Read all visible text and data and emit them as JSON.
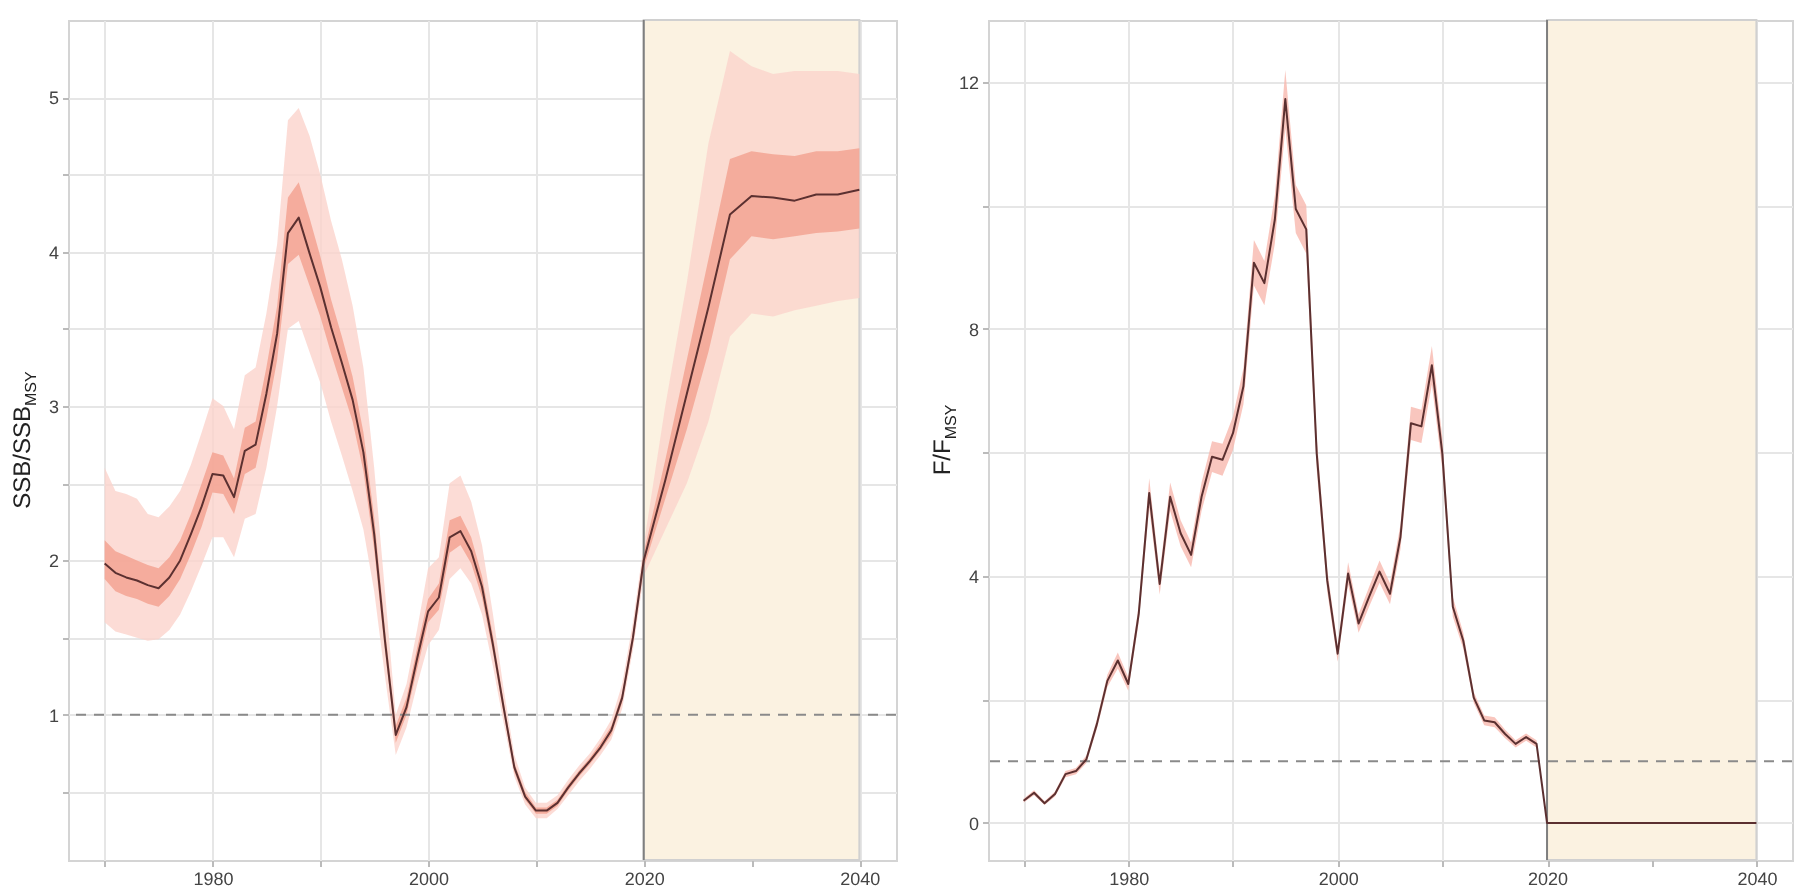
{
  "chart_data": [
    {
      "type": "line",
      "ylabel": "SSB/SSB$_{MSY}$",
      "grid": true,
      "xlim": [
        1966.6,
        2043.4
      ],
      "ylim": [
        0.06,
        5.5
      ],
      "xticks": [
        {
          "value": 1970,
          "label": null
        },
        1980,
        {
          "value": 1990,
          "label": null
        },
        2000,
        {
          "value": 2010,
          "label": null
        },
        2020,
        {
          "value": 2030,
          "label": null
        },
        2040
      ],
      "yticks": [
        {
          "value": 0.5,
          "label": null
        },
        1,
        {
          "value": 1.5,
          "label": null
        },
        2,
        {
          "value": 2.5,
          "label": null
        },
        3,
        {
          "value": 3.5,
          "label": null
        },
        4,
        {
          "value": 4.5,
          "label": null
        },
        5
      ],
      "x": [
        1970,
        1971,
        1972,
        1973,
        1974,
        1975,
        1976,
        1977,
        1978,
        1979,
        1980,
        1981,
        1982,
        1983,
        1984,
        1985,
        1986,
        1987,
        1988,
        1989,
        1990,
        1991,
        1992,
        1993,
        1994,
        1995,
        1996,
        1997,
        1998,
        1999,
        2000,
        2001,
        2002,
        2003,
        2004,
        2005,
        2006,
        2007,
        2008,
        2009,
        2010,
        2011,
        2012,
        2013,
        2014,
        2015,
        2016,
        2017,
        2018,
        2019,
        2020,
        2022,
        2024,
        2026,
        2028,
        2030,
        2032,
        2034,
        2036,
        2038,
        2040
      ],
      "bands": [
        {
          "axis": "x",
          "from": 2020,
          "to": 2040,
          "color": "#fbf2e1"
        }
      ],
      "ref_lines": [
        {
          "axis": "x",
          "value": 2020,
          "color": "#7f7f7f",
          "line_style": "solid"
        },
        {
          "axis": "y",
          "value": 1,
          "color": "#8a8a8a",
          "line_style": "dashed"
        }
      ],
      "series": [
        {
          "color": "#5b3030",
          "values": [
            1.98,
            1.92,
            1.89,
            1.87,
            1.84,
            1.82,
            1.89,
            2.0,
            2.17,
            2.35,
            2.56,
            2.55,
            2.41,
            2.71,
            2.75,
            3.08,
            3.47,
            4.12,
            4.22,
            3.99,
            3.77,
            3.51,
            3.28,
            3.04,
            2.7,
            2.17,
            1.48,
            0.87,
            1.05,
            1.37,
            1.67,
            1.76,
            2.15,
            2.19,
            2.06,
            1.83,
            1.46,
            1.05,
            0.66,
            0.47,
            0.38,
            0.38,
            0.43,
            0.53,
            0.62,
            0.7,
            0.79,
            0.9,
            1.11,
            1.5,
            2.0,
            2.52,
            3.08,
            3.64,
            4.24,
            4.36,
            4.35,
            4.33,
            4.37,
            4.37,
            4.4
          ]
        },
        {
          "color": "#f2a08f",
          "values": [
            null,
            null,
            null,
            null,
            null,
            null,
            null,
            null,
            null,
            null,
            null,
            null,
            null,
            null,
            null,
            null,
            null,
            null,
            null,
            null,
            null,
            null,
            null,
            null,
            null,
            null,
            null,
            null,
            null,
            null,
            null,
            null,
            null,
            null,
            null,
            null,
            null,
            null,
            null,
            null,
            null,
            null,
            null,
            null,
            null,
            null,
            null,
            null,
            null,
            null,
            null,
            null,
            null,
            null,
            null,
            null,
            null,
            null,
            null,
            null,
            null
          ],
          "lower": [
            1.88,
            1.8,
            1.77,
            1.75,
            1.72,
            1.7,
            1.77,
            1.88,
            2.04,
            2.22,
            2.44,
            2.43,
            2.3,
            2.56,
            2.6,
            2.92,
            3.3,
            3.92,
            3.98,
            3.78,
            3.58,
            3.34,
            3.12,
            2.9,
            2.58,
            2.07,
            1.41,
            0.82,
            1.0,
            1.3,
            1.6,
            1.68,
            2.05,
            2.1,
            1.98,
            1.76,
            1.41,
            1.01,
            0.63,
            0.45,
            0.36,
            0.36,
            0.41,
            0.51,
            0.6,
            0.68,
            0.77,
            0.87,
            1.08,
            1.46,
            1.95,
            2.4,
            2.85,
            3.35,
            3.95,
            4.1,
            4.08,
            4.1,
            4.12,
            4.13,
            4.15
          ],
          "upper": [
            2.13,
            2.06,
            2.03,
            2.0,
            1.97,
            1.95,
            2.02,
            2.13,
            2.3,
            2.5,
            2.7,
            2.68,
            2.53,
            2.86,
            2.9,
            3.25,
            3.65,
            4.35,
            4.45,
            4.22,
            3.97,
            3.69,
            3.45,
            3.19,
            2.83,
            2.28,
            1.56,
            0.93,
            1.11,
            1.44,
            1.75,
            1.85,
            2.26,
            2.29,
            2.15,
            1.9,
            1.52,
            1.09,
            0.69,
            0.5,
            0.4,
            0.4,
            0.45,
            0.55,
            0.64,
            0.72,
            0.82,
            0.93,
            1.14,
            1.54,
            2.05,
            2.65,
            3.3,
            3.95,
            4.6,
            4.65,
            4.63,
            4.62,
            4.65,
            4.65,
            4.67
          ]
        },
        {
          "color": "#fbd3cc",
          "values": [
            null,
            null,
            null,
            null,
            null,
            null,
            null,
            null,
            null,
            null,
            null,
            null,
            null,
            null,
            null,
            null,
            null,
            null,
            null,
            null,
            null,
            null,
            null,
            null,
            null,
            null,
            null,
            null,
            null,
            null,
            null,
            null,
            null,
            null,
            null,
            null,
            null,
            null,
            null,
            null,
            null,
            null,
            null,
            null,
            null,
            null,
            null,
            null,
            null,
            null,
            null,
            null,
            null,
            null,
            null,
            null,
            null,
            null,
            null,
            null,
            null
          ],
          "lower": [
            1.6,
            1.54,
            1.52,
            1.5,
            1.48,
            1.49,
            1.55,
            1.65,
            1.8,
            1.97,
            2.15,
            2.15,
            2.02,
            2.27,
            2.3,
            2.6,
            3.0,
            3.5,
            3.55,
            3.35,
            3.15,
            2.9,
            2.68,
            2.45,
            2.2,
            1.8,
            1.25,
            0.74,
            0.92,
            1.2,
            1.45,
            1.55,
            1.88,
            1.95,
            1.85,
            1.65,
            1.32,
            0.95,
            0.6,
            0.42,
            0.33,
            0.33,
            0.39,
            0.48,
            0.57,
            0.65,
            0.74,
            0.84,
            1.04,
            1.42,
            1.9,
            2.2,
            2.5,
            2.9,
            3.45,
            3.6,
            3.58,
            3.62,
            3.65,
            3.68,
            3.7
          ],
          "upper": [
            2.6,
            2.45,
            2.43,
            2.4,
            2.3,
            2.28,
            2.35,
            2.45,
            2.62,
            2.83,
            3.05,
            3.0,
            2.85,
            3.2,
            3.25,
            3.6,
            4.05,
            4.85,
            4.93,
            4.75,
            4.5,
            4.2,
            3.95,
            3.65,
            3.25,
            2.6,
            1.8,
            1.0,
            1.2,
            1.56,
            1.95,
            2.02,
            2.5,
            2.55,
            2.38,
            2.1,
            1.66,
            1.17,
            0.74,
            0.53,
            0.43,
            0.43,
            0.48,
            0.58,
            0.67,
            0.75,
            0.85,
            0.97,
            1.2,
            1.6,
            2.1,
            3.0,
            3.8,
            4.7,
            5.3,
            5.2,
            5.15,
            5.17,
            5.17,
            5.17,
            5.15
          ]
        }
      ]
    },
    {
      "type": "line",
      "ylabel": "F/F$_{MSY}$",
      "grid": true,
      "xlim": [
        1966.6,
        2043.4
      ],
      "ylim": [
        -0.6,
        13.0
      ],
      "xticks": [
        {
          "value": 1970,
          "label": null
        },
        1980,
        {
          "value": 1990,
          "label": null
        },
        2000,
        {
          "value": 2010,
          "label": null
        },
        2020,
        {
          "value": 2030,
          "label": null
        },
        2040
      ],
      "yticks": [
        0,
        {
          "value": 2,
          "label": null
        },
        4,
        {
          "value": 6,
          "label": null
        },
        8,
        {
          "value": 10,
          "label": null
        },
        12
      ],
      "x": [
        1970,
        1971,
        1972,
        1973,
        1974,
        1975,
        1976,
        1977,
        1978,
        1979,
        1980,
        1981,
        1982,
        1983,
        1984,
        1985,
        1986,
        1987,
        1988,
        1989,
        1990,
        1991,
        1992,
        1993,
        1994,
        1995,
        1996,
        1997,
        1998,
        1999,
        2000,
        2001,
        2002,
        2003,
        2004,
        2005,
        2006,
        2007,
        2008,
        2009,
        2010,
        2011,
        2012,
        2013,
        2014,
        2015,
        2016,
        2017,
        2018,
        2019,
        2020,
        2040
      ],
      "bands": [
        {
          "axis": "x",
          "from": 2020,
          "to": 2040,
          "color": "#fbf2e1"
        }
      ],
      "ref_lines": [
        {
          "axis": "x",
          "value": 2020,
          "color": "#7f7f7f",
          "line_style": "solid"
        },
        {
          "axis": "y",
          "value": 1,
          "color": "#8a8a8a",
          "line_style": "dashed"
        }
      ],
      "series": [
        {
          "color": "#5b3030",
          "values": [
            0.36,
            0.49,
            0.32,
            0.47,
            0.79,
            0.84,
            1.03,
            1.6,
            2.3,
            2.63,
            2.25,
            3.39,
            5.34,
            3.87,
            5.28,
            4.69,
            4.34,
            5.28,
            5.93,
            5.88,
            6.31,
            7.07,
            9.07,
            8.74,
            9.77,
            11.72,
            9.94,
            9.61,
            5.98,
            3.93,
            2.74,
            4.04,
            3.23,
            3.66,
            4.07,
            3.71,
            4.63,
            6.47,
            6.42,
            7.41,
            5.98,
            3.5,
            2.95,
            2.03,
            1.66,
            1.63,
            1.44,
            1.28,
            1.39,
            1.28,
            0,
            0
          ]
        },
        {
          "color": "#f7b8ae",
          "values": [
            null,
            null,
            null,
            null,
            null,
            null,
            null,
            null,
            null,
            null,
            null,
            null,
            null,
            null,
            null,
            null,
            null,
            null,
            null,
            null,
            null,
            null,
            null,
            null,
            null,
            null,
            null,
            null,
            null,
            null,
            null,
            null,
            null,
            null,
            null,
            null,
            null,
            null,
            null,
            null,
            null,
            null,
            null,
            null,
            null,
            null,
            null,
            null,
            null,
            null,
            null,
            null
          ],
          "lower": [
            0.33,
            0.45,
            0.29,
            0.43,
            0.74,
            0.79,
            0.97,
            1.52,
            2.2,
            2.5,
            2.14,
            3.25,
            5.1,
            3.7,
            5.05,
            4.48,
            4.14,
            5.05,
            5.68,
            5.62,
            6.04,
            6.78,
            8.7,
            8.38,
            9.38,
            11.25,
            9.55,
            9.22,
            5.72,
            3.75,
            2.61,
            3.86,
            3.08,
            3.5,
            3.89,
            3.54,
            4.43,
            6.2,
            6.15,
            7.1,
            5.72,
            3.34,
            2.82,
            1.94,
            1.58,
            1.55,
            1.37,
            1.22,
            1.33,
            1.22,
            0,
            0
          ],
          "upper": [
            0.39,
            0.53,
            0.35,
            0.51,
            0.84,
            0.89,
            1.09,
            1.68,
            2.4,
            2.76,
            2.36,
            3.53,
            5.58,
            4.04,
            5.51,
            4.9,
            4.54,
            5.51,
            6.18,
            6.14,
            6.58,
            7.36,
            9.44,
            9.1,
            10.16,
            12.19,
            10.33,
            10.0,
            6.24,
            4.11,
            2.87,
            4.22,
            3.38,
            3.82,
            4.25,
            3.88,
            4.83,
            6.74,
            6.69,
            7.72,
            6.24,
            3.66,
            3.08,
            2.12,
            1.74,
            1.71,
            1.51,
            1.34,
            1.45,
            1.34,
            0,
            0
          ]
        }
      ]
    }
  ]
}
